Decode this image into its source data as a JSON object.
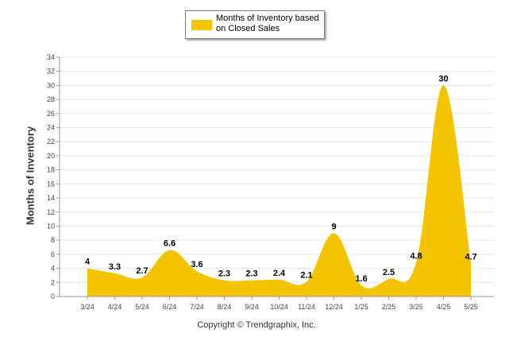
{
  "legend": {
    "label": "Months of Inventory based on Closed Sales"
  },
  "copyright": "Copyright © Trendgraphix, Inc.",
  "chart_data": {
    "type": "area",
    "title": "",
    "xlabel": "",
    "ylabel": "Months of Inventory",
    "ylim": [
      0,
      34
    ],
    "ytick_step": 2,
    "grid": true,
    "legend_position": "top-center",
    "color": "#F5C400",
    "series": [
      {
        "name": "Months of Inventory based on Closed Sales",
        "values": [
          4,
          3.3,
          2.7,
          6.6,
          3.6,
          2.3,
          2.3,
          2.4,
          2.1,
          9,
          1.6,
          2.5,
          4.8,
          30,
          4.7
        ]
      }
    ],
    "categories": [
      "3/24",
      "4/24",
      "5/24",
      "6/24",
      "7/24",
      "8/24",
      "9/24",
      "10/24",
      "11/24",
      "12/24",
      "1/25",
      "2/25",
      "3/25",
      "4/25",
      "5/25"
    ]
  }
}
